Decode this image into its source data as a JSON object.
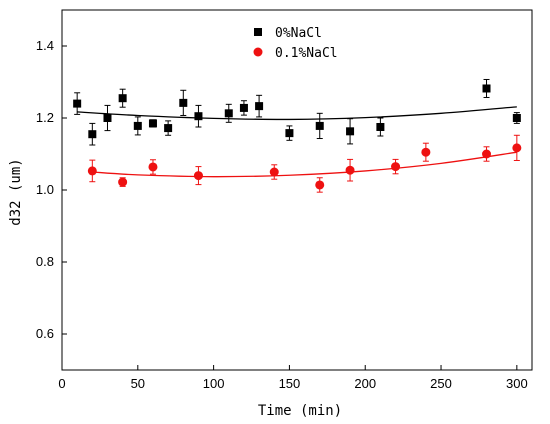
{
  "chart_data": {
    "type": "scatter",
    "xlabel": "Time (min)",
    "ylabel": "d32 (um)",
    "xlim": [
      0,
      310
    ],
    "ylim": [
      0.5,
      1.5
    ],
    "xticks": [
      0,
      50,
      100,
      150,
      200,
      250,
      300
    ],
    "yticks": [
      0.6,
      0.8,
      1.0,
      1.2,
      1.4
    ],
    "ytick_labels": [
      "0.6",
      "0.8",
      "1.0",
      "1.2",
      "1.4"
    ],
    "grid": false,
    "legend_position": "top-center",
    "series": [
      {
        "name": "0%NaCl",
        "color": "#000000",
        "marker": "square",
        "x": [
          10,
          20,
          30,
          40,
          50,
          60,
          70,
          80,
          90,
          110,
          120,
          130,
          150,
          170,
          190,
          210,
          280,
          300
        ],
        "y": [
          1.24,
          1.155,
          1.2,
          1.255,
          1.178,
          1.185,
          1.172,
          1.242,
          1.205,
          1.213,
          1.228,
          1.233,
          1.158,
          1.178,
          1.163,
          1.175,
          1.282,
          1.2
        ],
        "err": [
          0.03,
          0.03,
          0.035,
          0.025,
          0.025,
          0.01,
          0.02,
          0.035,
          0.03,
          0.025,
          0.02,
          0.03,
          0.02,
          0.035,
          0.035,
          0.025,
          0.025,
          0.015
        ],
        "fit_curve": [
          [
            10,
            1.217
          ],
          [
            50,
            1.207
          ],
          [
            100,
            1.199
          ],
          [
            150,
            1.196
          ],
          [
            200,
            1.201
          ],
          [
            250,
            1.213
          ],
          [
            300,
            1.231
          ]
        ]
      },
      {
        "name": "0.1%NaCl",
        "color": "#ee1111",
        "marker": "circle",
        "x": [
          20,
          40,
          60,
          90,
          140,
          170,
          190,
          220,
          240,
          280,
          300
        ],
        "y": [
          1.053,
          1.022,
          1.064,
          1.04,
          1.05,
          1.014,
          1.055,
          1.065,
          1.105,
          1.1,
          1.117
        ],
        "err": [
          0.03,
          0.012,
          0.02,
          0.025,
          0.02,
          0.02,
          0.03,
          0.02,
          0.025,
          0.02,
          0.035
        ],
        "fit_curve": [
          [
            20,
            1.05
          ],
          [
            50,
            1.042
          ],
          [
            100,
            1.037
          ],
          [
            150,
            1.041
          ],
          [
            200,
            1.053
          ],
          [
            250,
            1.074
          ],
          [
            300,
            1.105
          ]
        ]
      }
    ]
  }
}
